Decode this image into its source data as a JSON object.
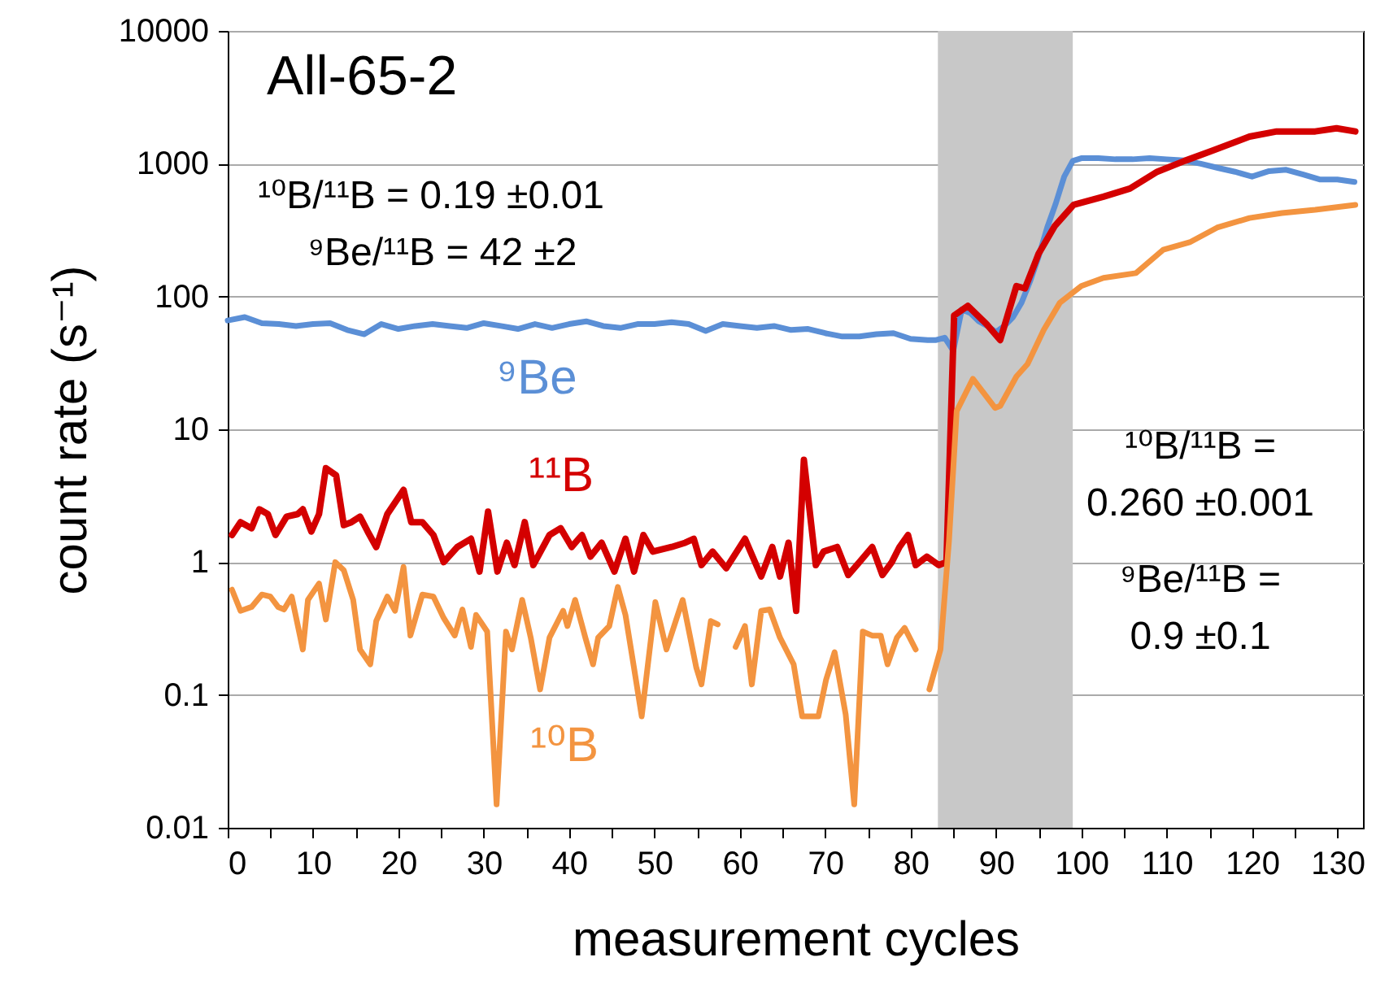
{
  "chart_data": {
    "type": "line",
    "title": "All-65-2",
    "xlabel": "measurement cycles",
    "ylabel": "count rate (s⁻¹)",
    "log": "y",
    "grid": "y",
    "xlim": [
      0,
      133
    ],
    "xticks": [
      0,
      {
        "value": 5,
        "label": null
      },
      10,
      {
        "value": 15,
        "label": null
      },
      20,
      {
        "value": 25,
        "label": null
      },
      30,
      {
        "value": 35,
        "label": null
      },
      40,
      {
        "value": 45,
        "label": null
      },
      50,
      {
        "value": 55,
        "label": null
      },
      60,
      {
        "value": 65,
        "label": null
      },
      70,
      {
        "value": 75,
        "label": null
      },
      80,
      {
        "value": 85,
        "label": null
      },
      90,
      {
        "value": 95,
        "label": null
      },
      100,
      {
        "value": 105,
        "label": null
      },
      110,
      {
        "value": 115,
        "label": null
      },
      120,
      {
        "value": 125,
        "label": null
      },
      130
    ],
    "ylim": [
      0.01,
      10000
    ],
    "yticks": [
      0.01,
      0.1,
      1,
      10,
      100,
      1000,
      10000
    ],
    "bands": [
      {
        "axis": "x",
        "from": 83.2,
        "to": 99,
        "color": "#c8c8c8"
      }
    ],
    "annotations": [
      "¹⁰B/¹¹B = 0.19 ±0.01",
      "⁹Be/¹¹B = 42 ±2",
      "¹⁰B/¹¹B =\n0.260 ±0.001",
      "⁹Be/¹¹B =\n0.9 ±0.1"
    ],
    "series": [
      {
        "name": "⁹Be",
        "color": "#5b8fd6",
        "x": [
          0,
          2,
          4,
          6,
          8,
          10,
          12,
          14,
          16,
          18,
          20,
          22,
          24,
          26,
          28,
          30,
          32,
          34,
          36,
          38,
          40,
          42,
          44,
          46,
          48,
          50,
          52,
          54,
          56,
          58,
          60,
          62,
          64,
          66,
          68,
          70,
          72,
          74,
          76,
          78,
          80,
          82,
          83,
          84,
          85,
          86,
          87,
          88,
          89,
          90,
          91,
          92,
          93,
          94,
          95,
          96,
          97,
          98,
          99,
          100,
          102,
          104,
          106,
          108,
          110,
          112,
          114,
          116,
          118,
          120,
          122,
          124,
          126,
          128,
          130,
          132
        ],
        "values": [
          66,
          70,
          63,
          62,
          60,
          62,
          63,
          56,
          52,
          62,
          57,
          60,
          62,
          60,
          58,
          63,
          60,
          57,
          62,
          58,
          62,
          65,
          60,
          58,
          62,
          62,
          64,
          62,
          55,
          62,
          60,
          58,
          60,
          56,
          57,
          53,
          50,
          50,
          52,
          53,
          48,
          47,
          47,
          49,
          39,
          80,
          75,
          65,
          60,
          54,
          60,
          70,
          90,
          130,
          200,
          330,
          500,
          800,
          1050,
          1100,
          1100,
          1080,
          1080,
          1100,
          1080,
          1060,
          1000,
          930,
          870,
          800,
          880,
          900,
          830,
          760,
          760,
          730
        ]
      },
      {
        "name": "¹¹B",
        "color": "#d40000",
        "x": [
          0.5,
          1.5,
          2.8,
          3.7,
          4.7,
          5.6,
          6.9,
          8.2,
          8.8,
          9.8,
          10.7,
          11.5,
          12.7,
          13.6,
          14.5,
          15.5,
          16.4,
          17.4,
          18.7,
          20.6,
          21.5,
          22.8,
          24.1,
          25.3,
          26.9,
          28.5,
          29.5,
          30.5,
          31.6,
          32.7,
          33.6,
          34.8,
          35.8,
          37.7,
          39,
          40.3,
          41.5,
          42.5,
          43.8,
          45.3,
          46.6,
          47.6,
          48.7,
          49.8,
          52,
          53.6,
          54.6,
          55.5,
          56.8,
          58.4,
          60.6,
          62.5,
          63.8,
          64.7,
          65.7,
          66.6,
          67.5,
          68.9,
          69.8,
          71.4,
          72.7,
          74,
          75.5,
          76.7,
          77.8,
          78.7,
          79.7,
          80.6,
          81.9,
          83.3,
          84.2,
          85.1,
          86.7,
          88.9,
          90.5,
          92.4,
          93.4,
          95,
          96.9,
          99.1,
          102.6,
          105.7,
          108.9,
          112.1,
          115.3,
          119.7,
          122.9,
          127.4,
          129.9,
          132.1
        ],
        "values": [
          1.6,
          2.0,
          1.8,
          2.5,
          2.3,
          1.6,
          2.2,
          2.3,
          2.5,
          1.7,
          2.3,
          5.1,
          4.5,
          1.9,
          2.0,
          2.2,
          1.7,
          1.3,
          2.3,
          3.5,
          2.0,
          2.0,
          1.6,
          1.0,
          1.3,
          1.5,
          0.85,
          2.4,
          0.85,
          1.4,
          0.95,
          2.0,
          0.95,
          1.6,
          1.8,
          1.3,
          1.6,
          1.1,
          1.4,
          0.85,
          1.5,
          0.85,
          1.6,
          1.2,
          1.3,
          1.4,
          1.5,
          0.95,
          1.2,
          0.9,
          1.5,
          0.78,
          1.3,
          0.78,
          1.4,
          0.43,
          5.9,
          0.95,
          1.2,
          1.3,
          0.8,
          1.0,
          1.3,
          0.8,
          1.0,
          1.3,
          1.6,
          0.95,
          1.1,
          0.95,
          1.0,
          72,
          85,
          62,
          47,
          120,
          115,
          210,
          340,
          490,
          565,
          650,
          870,
          1050,
          1250,
          1600,
          1750,
          1750,
          1850,
          1750
        ]
      },
      {
        "name": "¹⁰B",
        "color": "#f39440",
        "x": [
          0.5,
          1.5,
          2.8,
          4.0,
          5.0,
          5.9,
          6.6,
          7.5,
          8.8,
          9.4,
          10.7,
          11.5,
          12.6,
          13.6,
          14.7,
          15.5,
          16.7,
          17.4,
          18.7,
          19.6,
          20.6,
          21.4,
          22.8,
          24.1,
          25.3,
          26.6,
          27.5,
          28.5,
          29.1,
          30.4,
          31.5,
          32.6,
          33.3,
          34.5,
          35.5,
          36.6,
          37.7,
          39.3,
          39.8,
          40.7,
          41.9,
          42.8,
          43.4,
          44.7,
          45.7,
          46.6,
          47.6,
          48.5,
          50.1,
          51.4,
          53.3,
          54.9,
          55.5,
          56.6,
          57.4,
          58.4,
          59.5,
          60.6,
          61.4,
          62.5,
          63.5,
          64.7,
          66.3,
          67.3,
          69.2,
          70.1,
          71.1,
          72.4,
          73.4,
          74.4,
          75.5,
          76.5,
          77.3,
          78.4,
          79.3,
          80.6,
          81.5,
          82.2,
          83.5,
          84.5,
          85.4,
          87.3,
          89.9,
          90.5,
          92.4,
          93.7,
          95.6,
          97.5,
          100,
          102.6,
          106.4,
          109.6,
          112.7,
          115.9,
          119.7,
          123.5,
          127.4,
          132.1
        ],
        "values": [
          0.62,
          0.43,
          0.46,
          0.57,
          0.55,
          0.46,
          0.44,
          0.55,
          0.22,
          0.52,
          0.69,
          0.37,
          1.0,
          0.87,
          0.52,
          0.22,
          0.17,
          0.36,
          0.55,
          0.43,
          0.92,
          0.28,
          0.57,
          0.55,
          0.38,
          0.28,
          0.44,
          0.23,
          0.4,
          0.3,
          0.015,
          0.3,
          0.22,
          0.52,
          0.27,
          0.11,
          0.27,
          0.43,
          0.33,
          0.52,
          0.27,
          0.17,
          0.27,
          0.33,
          0.65,
          0.4,
          0.16,
          0.069,
          0.5,
          0.22,
          0.52,
          0.16,
          0.12,
          0.36,
          0.34,
          null,
          0.23,
          0.33,
          0.12,
          0.43,
          0.44,
          0.27,
          0.17,
          0.069,
          0.069,
          0.13,
          0.21,
          0.071,
          0.015,
          0.3,
          0.28,
          0.28,
          0.17,
          0.27,
          0.32,
          0.22,
          null,
          0.11,
          0.22,
          1.45,
          13.7,
          24,
          14.5,
          15,
          25,
          31,
          56,
          90,
          120,
          138,
          150,
          225,
          256,
          330,
          390,
          425,
          450,
          490
        ]
      }
    ]
  }
}
